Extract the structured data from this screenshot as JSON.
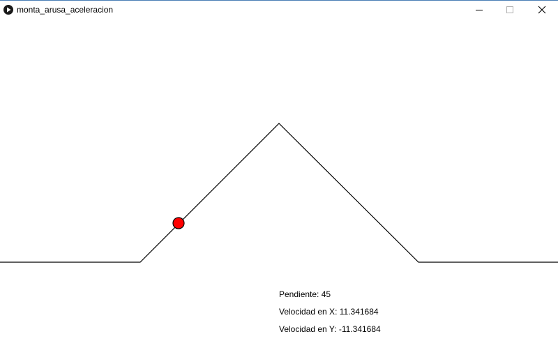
{
  "window": {
    "title": "monta_arusa_aceleracion"
  },
  "controls": {
    "minimize_icon": "minimize-icon",
    "maximize_icon": "maximize-icon",
    "close_icon": "close-icon"
  },
  "scene": {
    "track_color": "#000000",
    "ball_color": "#ff0000",
    "ball_stroke": "#000000",
    "background": "#ffffff"
  },
  "info": {
    "pendiente": "Pendiente: 45",
    "velocidad_x": "Velocidad en X: 11.341684",
    "velocidad_y": "Velocidad en Y: -11.341684"
  }
}
